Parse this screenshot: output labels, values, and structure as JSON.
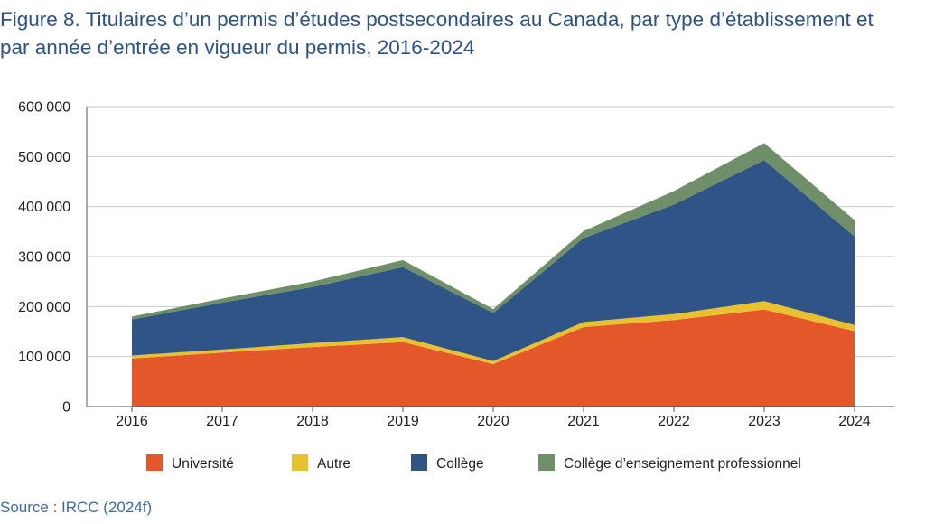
{
  "title": "Figure 8. Titulaires d’un permis d’études postsecondaires au Canada, par type d’établissement et par année d’entrée en vigueur du permis, 2016-2024",
  "source": "Source : IRCC (2024f)",
  "chart_data": {
    "type": "area",
    "stacked": true,
    "title": "Figure 8. Titulaires d’un permis d’études postsecondaires au Canada, par type d’établissement et par année d’entrée en vigueur du permis, 2016-2024",
    "xlabel": "",
    "ylabel": "",
    "x": [
      "2016",
      "2017",
      "2018",
      "2019",
      "2020",
      "2021",
      "2022",
      "2023",
      "2024"
    ],
    "ylim": [
      0,
      600000
    ],
    "yticks": [
      0,
      100000,
      200000,
      300000,
      400000,
      500000,
      600000
    ],
    "ytick_labels": [
      "0",
      "100 000",
      "200 000",
      "300 000",
      "400 000",
      "500 000",
      "600 000"
    ],
    "grid": "horizontal",
    "legend_position": "bottom",
    "series": [
      {
        "name": "Université",
        "color": "#e4572a",
        "values": [
          96000,
          108000,
          119000,
          129000,
          85000,
          159000,
          173000,
          194000,
          151000
        ]
      },
      {
        "name": "Autre",
        "color": "#e8c12f",
        "values": [
          6000,
          6000,
          8000,
          10000,
          6000,
          10000,
          12000,
          17000,
          12000
        ]
      },
      {
        "name": "Collège",
        "color": "#2f5587",
        "values": [
          72000,
          94000,
          112000,
          140000,
          96000,
          168000,
          219000,
          282000,
          177000
        ]
      },
      {
        "name": "Collège d’enseignement professionnel",
        "color": "#6e8f67",
        "values": [
          6000,
          8000,
          11000,
          14000,
          8000,
          14000,
          27000,
          34000,
          33000
        ]
      }
    ]
  }
}
